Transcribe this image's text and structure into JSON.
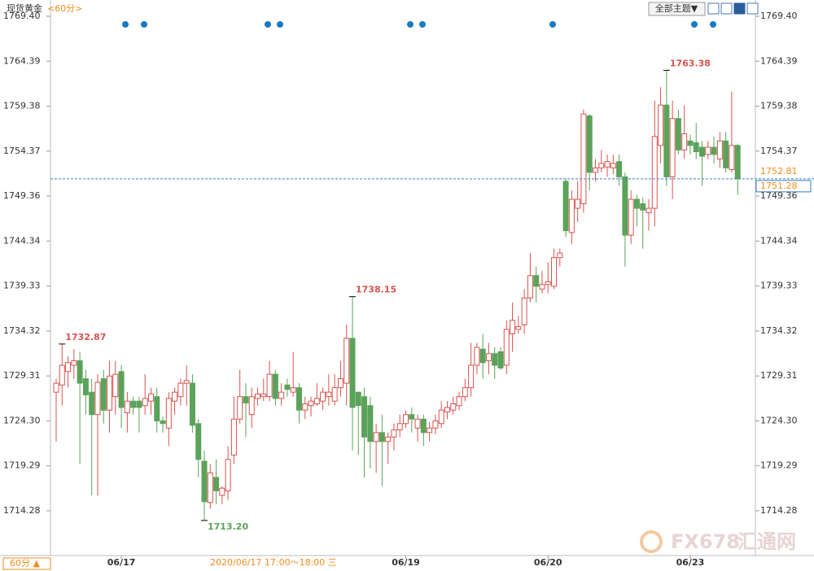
{
  "header": {
    "symbol": "现货黄金",
    "period": "<60分>",
    "theme_button": "全部主题▼"
  },
  "footer": {
    "period_button": "60分 ▲",
    "crosshair_label": "2020/06/17 17:00～18:00 三",
    "watermark_code": "FX678",
    "watermark_name": "汇通网"
  },
  "chart_data": {
    "type": "candlestick",
    "up_color": "#d9534f",
    "down_color": "#5ba35b",
    "ylim": [
      1709.29,
      1770.76
    ],
    "yticks": [
      {
        "value": 1769.4,
        "label": "1769.40"
      },
      1764.39,
      1759.38,
      1754.37,
      1749.36,
      1744.34,
      1739.33,
      1734.32,
      1729.31,
      {
        "value": 1724.3,
        "label": "1724.30"
      },
      1719.29,
      1714.28
    ],
    "categories": [
      null,
      null,
      null,
      null,
      null,
      null,
      null,
      null,
      null,
      null,
      null,
      "06/17",
      null,
      null,
      null,
      null,
      null,
      null,
      null,
      null,
      null,
      null,
      null,
      null,
      null,
      null,
      null,
      null,
      null,
      null,
      null,
      null,
      null,
      null,
      null,
      null,
      null,
      null,
      null,
      null,
      null,
      null,
      null,
      null,
      null,
      null,
      null,
      null,
      null,
      null,
      null,
      null,
      null,
      null,
      null,
      null,
      null,
      null,
      null,
      "06/19",
      null,
      null,
      null,
      null,
      null,
      null,
      null,
      null,
      null,
      null,
      null,
      null,
      null,
      null,
      null,
      null,
      null,
      null,
      null,
      null,
      null,
      null,
      null,
      "06/20",
      null,
      null,
      null,
      null,
      null,
      null,
      null,
      null,
      null,
      null,
      null,
      null,
      null,
      null,
      null,
      null,
      null,
      null,
      null,
      null,
      null,
      null,
      null,
      "06/23",
      null,
      null,
      null,
      null,
      null,
      null,
      null,
      null
    ],
    "open": [
      1727.5,
      1728.3,
      1729.8,
      1730.5,
      1731,
      1729,
      1727.5,
      1725,
      1729,
      1725.5,
      1727,
      1729.8,
      1725.2,
      1726.5,
      1726.5,
      1726,
      1726.5,
      1727,
      1724.3,
      1723.5,
      1726.5,
      1727,
      1728.5,
      1728.5,
      1724,
      1719.8,
      1715.2,
      1718,
      1716,
      1716.5,
      1720.5,
      1724.5,
      1727,
      1725,
      1726.8,
      1727,
      1727,
      1729.5,
      1726.8,
      1728.3,
      1727.5,
      1728,
      1725.5,
      1726,
      1726.2,
      1726.5,
      1727,
      1726.5,
      1728,
      1728.5,
      1733.5,
      1727.5,
      1727,
      1726,
      1722,
      1723,
      1722,
      1722.5,
      1723.3,
      1724,
      1725,
      1723.5,
      1724.5,
      1723,
      1723.5,
      1724,
      1725.3,
      1725.5,
      1726,
      1727,
      1728,
      1730.5,
      1732.3,
      1731,
      1731.8,
      1732,
      1730.5,
      1734,
      1734.5,
      1735,
      1738,
      1740.5,
      1739,
      1739.5,
      1739.3,
      1742.5,
      1751,
      1745.3,
      1748,
      1748.5,
      1758.3,
      1752,
      1752.5,
      1752.6,
      1752.5,
      1753.2,
      1751.5,
      1745,
      1749,
      1748.5,
      1747.5,
      1748,
      1755,
      1759.5,
      1751.5,
      1758,
      1754.5,
      1755.5,
      1755.3,
      1754.8,
      1754,
      1754.8,
      1753.5,
      1755.5,
      1752.3,
      1755
    ],
    "high": [
      1729,
      1732.87,
      1731.5,
      1732.3,
      1732,
      1730,
      1729,
      1729.5,
      1730,
      1731,
      1731,
      1730.5,
      1727.5,
      1727,
      1727,
      1729.5,
      1728,
      1728,
      1724.8,
      1727.5,
      1728,
      1729,
      1730.5,
      1729.5,
      1724.5,
      1721,
      1719.5,
      1720,
      1717,
      1721.5,
      1727,
      1730,
      1728.5,
      1728,
      1728,
      1729,
      1731,
      1730,
      1728.5,
      1729,
      1732,
      1728.5,
      1727,
      1727,
      1728.5,
      1728,
      1729.5,
      1729.5,
      1731,
      1735,
      1738.15,
      1727.5,
      1728,
      1727,
      1724,
      1725,
      1723,
      1724,
      1725,
      1725.5,
      1725.8,
      1725,
      1725,
      1724.2,
      1725,
      1726.5,
      1726.5,
      1727,
      1727.5,
      1729,
      1733,
      1733,
      1734,
      1733,
      1732.5,
      1732.5,
      1735.5,
      1737.5,
      1736,
      1739,
      1743,
      1741.5,
      1741,
      1742,
      1743.5,
      1743.5,
      1751.3,
      1750,
      1751,
      1759,
      1758.5,
      1753.5,
      1754.5,
      1754,
      1754,
      1754,
      1752,
      1750,
      1749.5,
      1749.2,
      1749,
      1760,
      1761.5,
      1763.38,
      1760,
      1759,
      1759.5,
      1756.2,
      1757.5,
      1755.5,
      1755.5,
      1756,
      1756.5,
      1756.5,
      1761,
      1755.2
    ],
    "low": [
      1722,
      1726,
      1728,
      1729,
      1719.5,
      1725,
      1716,
      1716,
      1724,
      1723,
      1725,
      1723.5,
      1723,
      1725,
      1723,
      1725,
      1725,
      1723,
      1723,
      1721.5,
      1725,
      1726,
      1726,
      1723,
      1718,
      1713.2,
      1714.5,
      1715,
      1715,
      1715.5,
      1719.5,
      1724,
      1722.5,
      1723.5,
      1726,
      1726.5,
      1726.5,
      1726,
      1726,
      1727,
      1727,
      1724,
      1724.5,
      1724.8,
      1726,
      1725.5,
      1726,
      1726,
      1727,
      1726,
      1721,
      1720.5,
      1718,
      1719,
      1718.5,
      1717,
      1719.5,
      1721,
      1722.5,
      1723.5,
      1723,
      1722,
      1721.5,
      1722,
      1722.8,
      1723.5,
      1724.5,
      1725,
      1725.5,
      1726.5,
      1727,
      1729.5,
      1729,
      1729.5,
      1729,
      1730,
      1729.5,
      1732,
      1734,
      1734,
      1737.5,
      1737.5,
      1738.5,
      1738.5,
      1739,
      1741.5,
      1744.8,
      1744,
      1746.5,
      1747.5,
      1750,
      1751,
      1752,
      1751.5,
      1751.8,
      1750.5,
      1741.5,
      1744,
      1746,
      1743.5,
      1745.5,
      1746,
      1753,
      1750.5,
      1749,
      1754,
      1753.5,
      1754,
      1753.5,
      1750.5,
      1753.5,
      1753,
      1752.5,
      1752,
      1752,
      1749.5
    ],
    "close": [
      1728.5,
      1730.5,
      1730.8,
      1731,
      1728.5,
      1727.2,
      1725,
      1728.6,
      1725.5,
      1729.3,
      1729.5,
      1725.8,
      1726.5,
      1725.8,
      1725.8,
      1726.8,
      1727.3,
      1724.3,
      1724,
      1726.8,
      1727.5,
      1728.5,
      1728.8,
      1723.8,
      1720,
      1715.3,
      1718.5,
      1716.5,
      1716.8,
      1720,
      1724.5,
      1727,
      1726.3,
      1727,
      1727.3,
      1727.3,
      1729.5,
      1726.8,
      1727.5,
      1727.8,
      1728,
      1725.5,
      1726.2,
      1726.5,
      1726.8,
      1727.5,
      1727.5,
      1728,
      1729,
      1733.5,
      1725.8,
      1726,
      1722.5,
      1722,
      1723,
      1722,
      1722.5,
      1723.3,
      1724,
      1725,
      1724.5,
      1724.5,
      1723,
      1723.5,
      1724.3,
      1725.5,
      1725.8,
      1726.2,
      1727,
      1728,
      1730.5,
      1732.5,
      1730.8,
      1731.8,
      1730.5,
      1730.2,
      1734.5,
      1735.5,
      1734.8,
      1738,
      1740.5,
      1739.3,
      1739.5,
      1739.8,
      1742.5,
      1743,
      1745.5,
      1749,
      1749,
      1758.5,
      1752,
      1752.5,
      1753,
      1753.2,
      1753,
      1751.5,
      1745,
      1749,
      1748,
      1747.8,
      1748,
      1756,
      1759.5,
      1751.5,
      1758,
      1754.5,
      1756.3,
      1755,
      1754.3,
      1753.8,
      1754.8,
      1754,
      1755.5,
      1752.5,
      1755,
      1751.28
    ],
    "marked_extremes": {
      "values": [
        1732.87,
        1738.15,
        1763.38,
        1713.2
      ],
      "value_labels": [
        "1732.87",
        "1738.15",
        "1763.38",
        "1713.20"
      ]
    },
    "price_labels": [
      1752.81,
      1751.28
    ]
  }
}
